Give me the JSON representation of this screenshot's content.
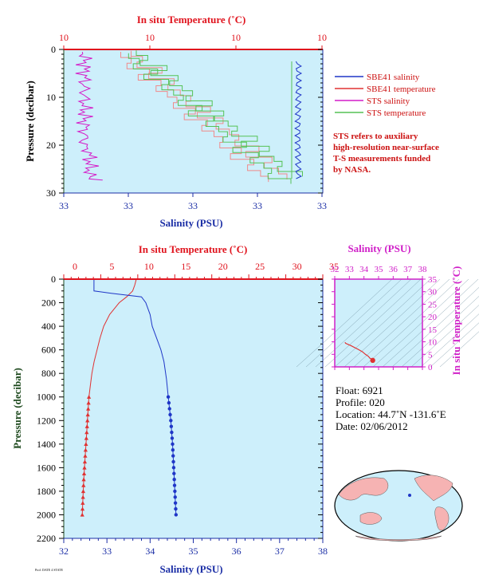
{
  "colors": {
    "panel_bg": "#cdeffb",
    "sal_axis": "#1c2fa6",
    "temp_axis": "#e0141e",
    "ts_axis": "#d020c8",
    "pressure_label": "#1e4a1e",
    "sbe_sal": "#1f36c7",
    "sbe_temp": "#e03232",
    "sts_sal": "#d41cc8",
    "sts_temp": "#55c255",
    "sts_temp_pink": "#f08a8a",
    "note": "#cc1111"
  },
  "top_chart": {
    "temp_axis_title": "In situ Temperature (˚C)",
    "temp_ticks": [
      "10",
      "10",
      "10",
      "10"
    ],
    "sal_axis_title": "Salinity (PSU)",
    "sal_ticks": [
      "33",
      "33",
      "33",
      "33",
      "33"
    ],
    "pressure_title": "Pressure (decibar)",
    "pressure_ticks": [
      "0",
      "10",
      "20",
      "30"
    ],
    "legend": [
      {
        "label": "SBE41 salinity",
        "color": "#1f36c7"
      },
      {
        "label": "SBE41 temperature",
        "color": "#e03232"
      },
      {
        "label": "STS salinity",
        "color": "#d41cc8"
      },
      {
        "label": "STS temperature",
        "color": "#55c255"
      }
    ],
    "note_lines": [
      "STS refers to auxiliary",
      "high-resolution near-surface",
      "T-S measurements funded",
      "by NASA."
    ]
  },
  "ts_diagram": {
    "sal_axis_title": "Salinity (PSU)",
    "sal_ticks": [
      "32",
      "33",
      "34",
      "35",
      "36",
      "37",
      "38"
    ],
    "temp_axis_title": "In situ Temperature (˚C)",
    "temp_ticks": [
      "35",
      "30",
      "25",
      "20",
      "15",
      "10",
      "5",
      "0"
    ]
  },
  "info": {
    "float": "Float:  6921",
    "profile": "Profile:  020",
    "location": "Location:  44.7˚N  -131.6˚E",
    "date": "Date:  02/06/2012"
  },
  "footer_small": "Prof: DATE 4 STATE",
  "chart_data": [
    {
      "type": "line",
      "name": "near-surface profile",
      "title": "",
      "xlabel_top": "In situ Temperature (˚C)",
      "xlabel_bottom": "Salinity (PSU)",
      "ylabel": "Pressure (decibar)",
      "ylim": [
        30,
        0
      ],
      "series": [
        {
          "name": "SBE41 salinity",
          "color": "#1f36c7",
          "x_frac": [
            0.905,
            0.9,
            0.898,
            0.9,
            0.895,
            0.895,
            0.897,
            0.9,
            0.897
          ],
          "y": [
            2.5,
            5,
            8,
            12,
            15,
            18,
            21,
            24,
            27
          ]
        },
        {
          "name": "STS salinity",
          "color": "#d41cc8",
          "x_frac": [
            0.09,
            0.09,
            0.095,
            0.085,
            0.09,
            0.095,
            0.1,
            0.11,
            0.12
          ],
          "y": [
            0.5,
            3,
            6,
            9,
            12,
            16,
            20,
            24,
            27
          ]
        },
        {
          "name": "STS temperature",
          "color": "#55c255",
          "x_frac": [
            0.27,
            0.33,
            0.37,
            0.42,
            0.55,
            0.6,
            0.65,
            0.72,
            0.78,
            0.82,
            0.85
          ],
          "y": [
            0.5,
            2,
            4,
            6,
            8,
            10,
            13,
            16,
            19,
            22,
            25
          ]
        }
      ]
    },
    {
      "type": "line",
      "name": "full-depth profile",
      "xlabel_top": "In situ Temperature (˚C)",
      "xlabel_bottom": "Salinity (PSU)",
      "ylabel": "Pressure (decibar)",
      "temperature_xlim": [
        0,
        35
      ],
      "salinity_xlim": [
        32,
        38
      ],
      "ylim": [
        2200,
        0
      ],
      "series": [
        {
          "name": "SBE41 temperature",
          "color": "#e03232",
          "x": [
            9.8,
            9.6,
            9.3,
            8.5,
            7.5,
            6.2,
            5.4,
            4.9,
            4.5,
            4.1,
            3.8,
            3.6,
            3.4,
            3.3,
            3.2,
            3.1,
            3.0,
            2.9,
            2.8,
            2.7,
            2.6,
            2.5
          ],
          "y": [
            0,
            50,
            100,
            150,
            200,
            300,
            400,
            500,
            600,
            700,
            800,
            900,
            1000,
            1100,
            1200,
            1300,
            1400,
            1500,
            1600,
            1700,
            1850,
            2000
          ]
        },
        {
          "name": "SBE41 salinity",
          "color": "#1f36c7",
          "x": [
            32.7,
            32.7,
            33.1,
            33.8,
            33.9,
            34.0,
            34.05,
            34.15,
            34.25,
            34.32,
            34.38,
            34.42,
            34.45,
            34.48,
            34.5,
            34.52,
            34.54,
            34.56,
            34.58,
            34.6
          ],
          "y": [
            0,
            100,
            120,
            150,
            200,
            300,
            400,
            500,
            600,
            700,
            850,
            1000,
            1100,
            1200,
            1300,
            1400,
            1550,
            1700,
            1850,
            2000
          ]
        }
      ],
      "markers_from_pressure": 1000
    },
    {
      "type": "line",
      "name": "T-S diagram",
      "xlabel": "Salinity (PSU)",
      "ylabel": "In situ Temperature (˚C)",
      "xlim": [
        32,
        38
      ],
      "ylim": [
        0,
        35
      ],
      "series": [
        {
          "name": "profile",
          "color": "#e03232",
          "x": [
            32.7,
            32.75,
            33.1,
            33.6,
            33.9,
            34.1,
            34.3,
            34.4,
            34.55,
            34.6
          ],
          "y": [
            9.8,
            9.4,
            8.5,
            7.0,
            6.0,
            5.0,
            4.2,
            3.5,
            3.0,
            2.5
          ]
        }
      ]
    },
    {
      "type": "map",
      "name": "float location",
      "marker": {
        "lat": 44.7,
        "lon": -131.6
      }
    }
  ]
}
